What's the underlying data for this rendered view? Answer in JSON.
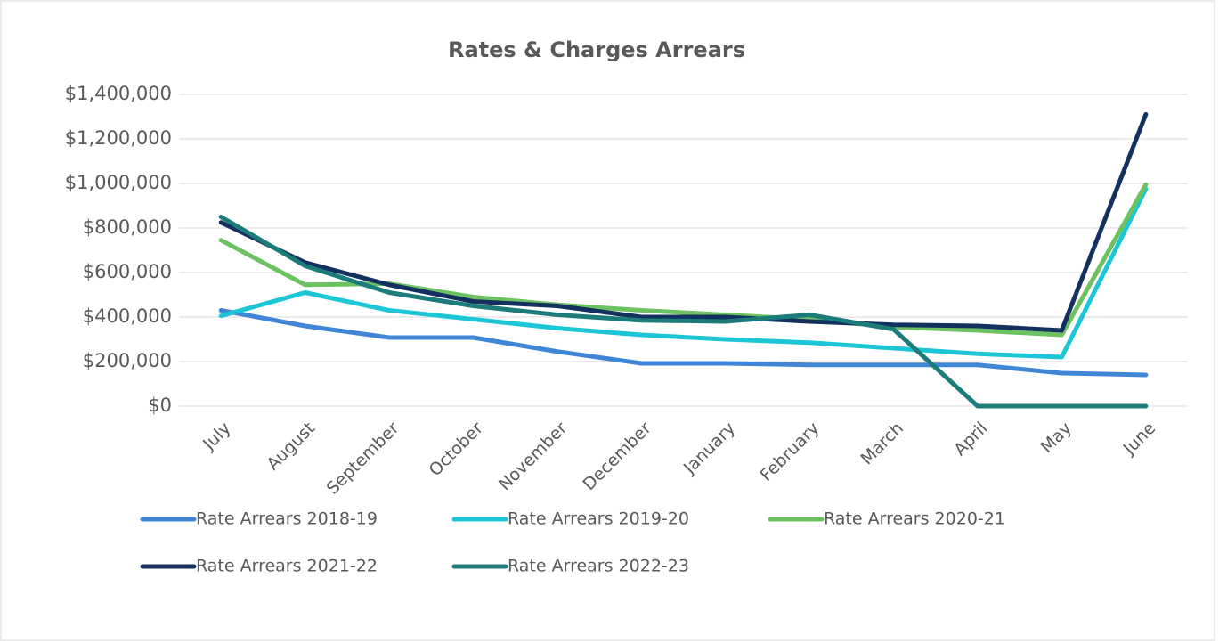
{
  "chart_data": {
    "type": "line",
    "title": "Rates & Charges Arrears",
    "categories": [
      "July",
      "August",
      "September",
      "October",
      "November",
      "December",
      "January",
      "February",
      "March",
      "April",
      "May",
      "June"
    ],
    "series": [
      {
        "name": "Rate Arrears 2018-19",
        "color": "#3f86d6",
        "values": [
          430000,
          360000,
          308000,
          308000,
          245000,
          192000,
          192000,
          185000,
          185000,
          185000,
          148000,
          140000
        ]
      },
      {
        "name": "Rate Arrears 2019-20",
        "color": "#1cc6d6",
        "values": [
          405000,
          510000,
          430000,
          390000,
          350000,
          320000,
          300000,
          285000,
          260000,
          235000,
          220000,
          975000
        ]
      },
      {
        "name": "Rate Arrears 2020-21",
        "color": "#6cc160",
        "values": [
          745000,
          545000,
          550000,
          490000,
          455000,
          430000,
          410000,
          390000,
          355000,
          340000,
          320000,
          995000
        ]
      },
      {
        "name": "Rate Arrears 2021-22",
        "color": "#14305f",
        "values": [
          825000,
          645000,
          545000,
          470000,
          450000,
          400000,
          400000,
          380000,
          365000,
          360000,
          340000,
          1310000
        ]
      },
      {
        "name": "Rate Arrears 2022-23",
        "color": "#1b7c7a",
        "values": [
          850000,
          630000,
          510000,
          450000,
          410000,
          385000,
          380000,
          410000,
          345000,
          0,
          0,
          0
        ]
      }
    ],
    "ylim": [
      0,
      1400000
    ],
    "yticks": [
      {
        "value": 0,
        "label": "$0"
      },
      {
        "value": 200000,
        "label": "$200,000"
      },
      {
        "value": 400000,
        "label": "$400,000"
      },
      {
        "value": 600000,
        "label": "$600,000"
      },
      {
        "value": 800000,
        "label": "$800,000"
      },
      {
        "value": 1000000,
        "label": "$1,000,000"
      },
      {
        "value": 1200000,
        "label": "$1,200,000"
      },
      {
        "value": 1400000,
        "label": "$1,400,000"
      }
    ],
    "grid": true
  }
}
